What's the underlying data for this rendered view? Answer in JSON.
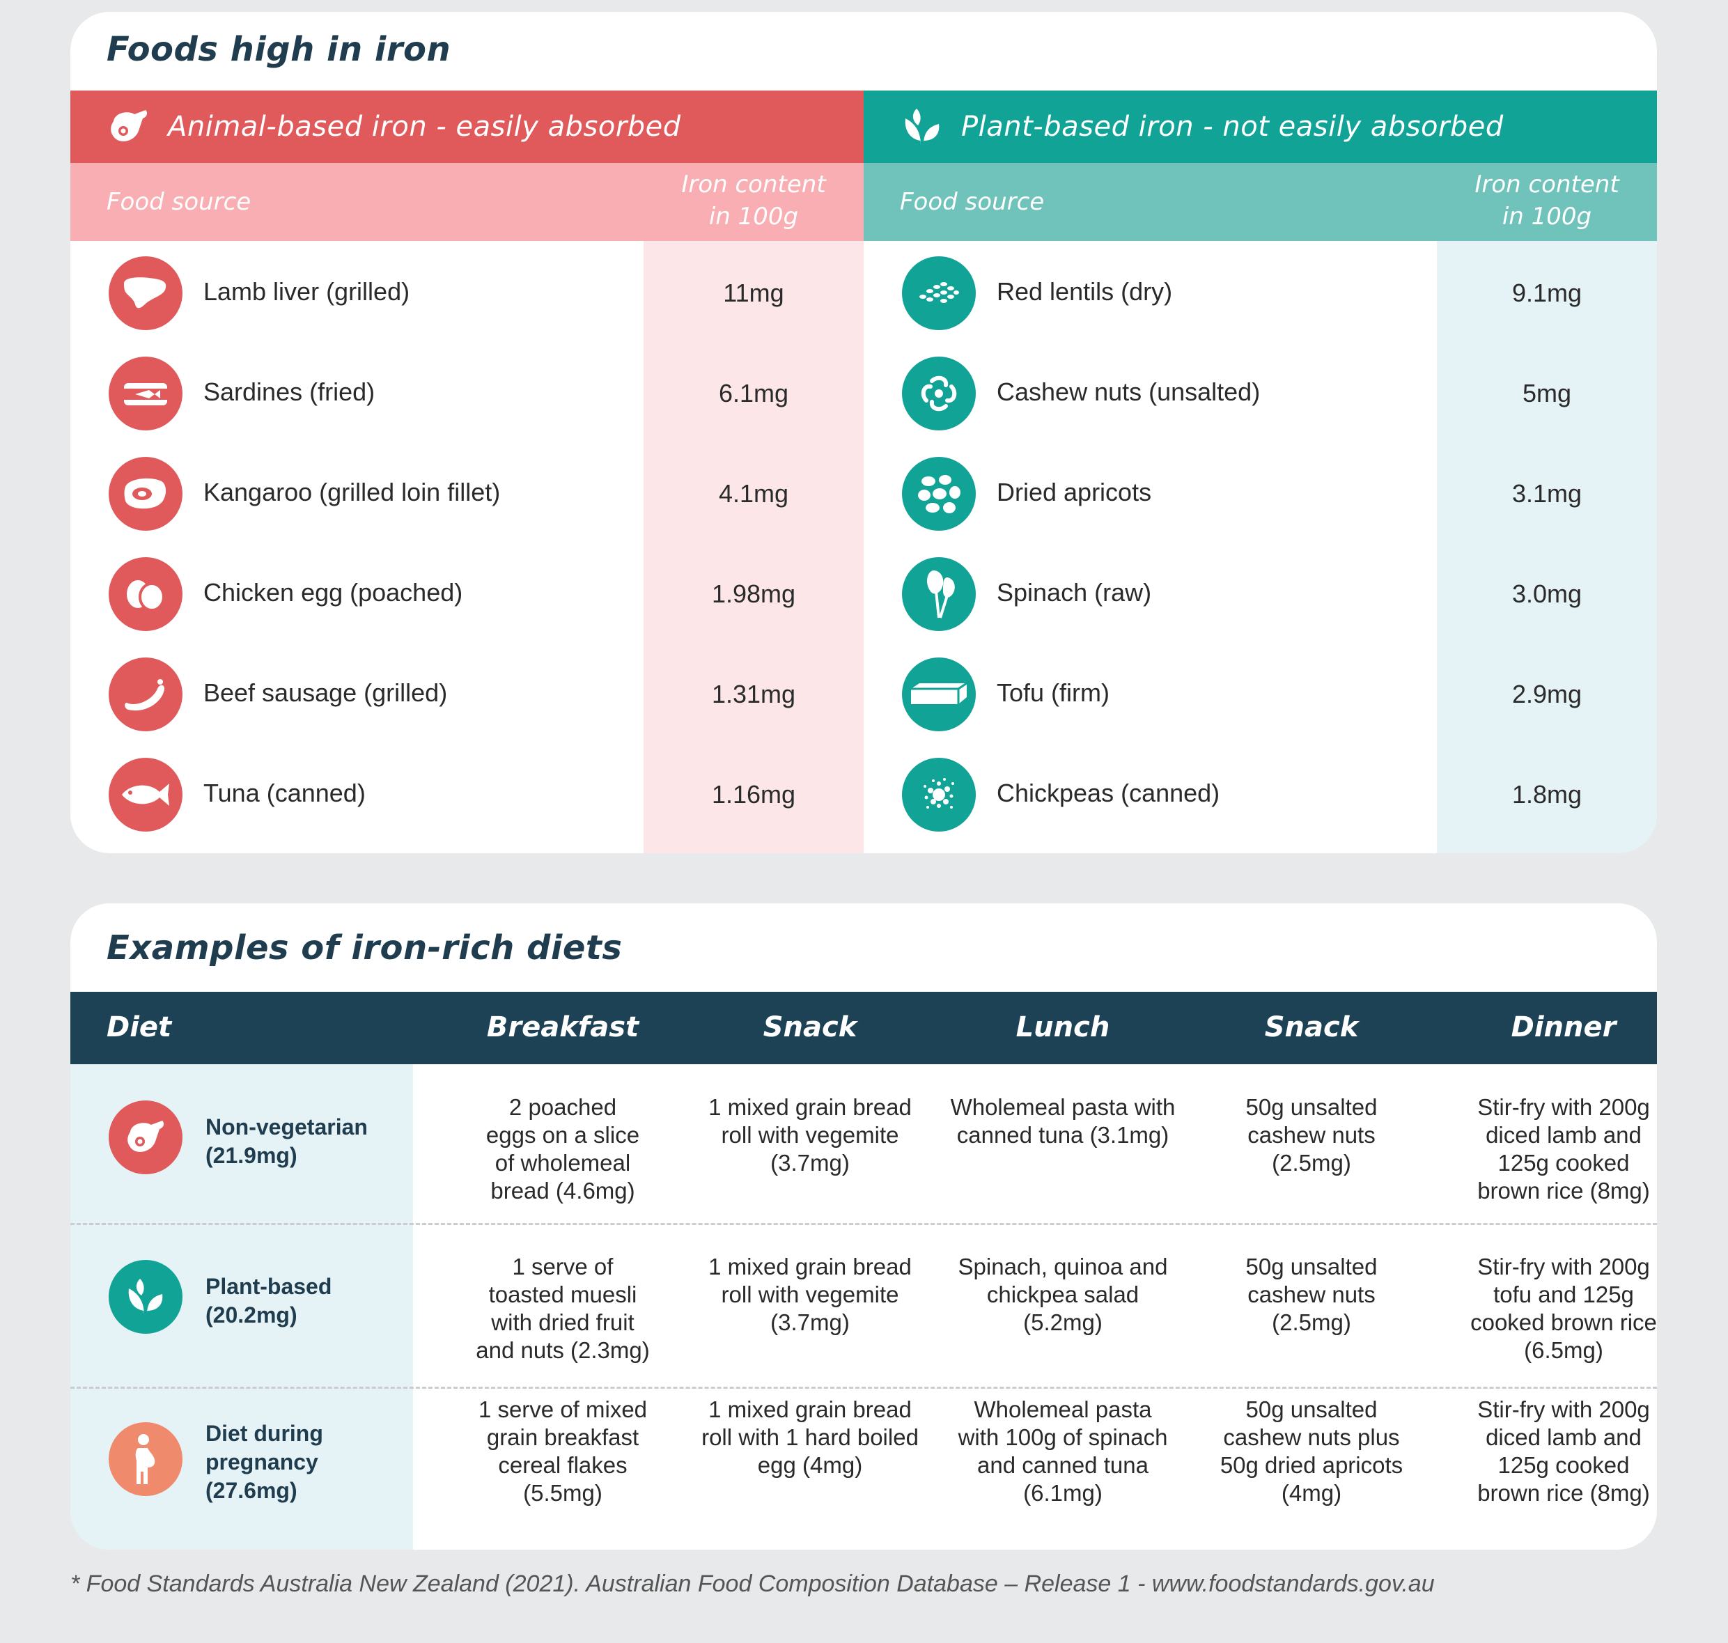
{
  "iron_table": {
    "title": "Foods high in iron",
    "animal": {
      "heading": "Animal-based iron - easily absorbed",
      "col_food": "Food source",
      "col_iron_line1": "Iron content",
      "col_iron_line2": "in 100g",
      "rows": [
        {
          "name": "Lamb liver (grilled)",
          "value": "11mg",
          "icon": "liver-icon"
        },
        {
          "name": "Sardines (fried)",
          "value": "6.1mg",
          "icon": "sardine-tin-icon"
        },
        {
          "name": "Kangaroo (grilled loin fillet)",
          "value": "4.1mg",
          "icon": "steak-icon"
        },
        {
          "name": "Chicken egg (poached)",
          "value": "1.98mg",
          "icon": "eggs-icon"
        },
        {
          "name": "Beef sausage (grilled)",
          "value": "1.31mg",
          "icon": "sausage-icon"
        },
        {
          "name": "Tuna (canned)",
          "value": "1.16mg",
          "icon": "fish-icon"
        }
      ]
    },
    "plant": {
      "heading": "Plant-based iron - not easily absorbed",
      "col_food": "Food source",
      "col_iron_line1": "Iron content",
      "col_iron_line2": "in 100g",
      "rows": [
        {
          "name": "Red lentils (dry)",
          "value": "9.1mg",
          "icon": "lentils-icon"
        },
        {
          "name": "Cashew nuts (unsalted)",
          "value": "5mg",
          "icon": "cashew-icon"
        },
        {
          "name": "Dried apricots",
          "value": "3.1mg",
          "icon": "apricots-icon"
        },
        {
          "name": "Spinach (raw)",
          "value": "3.0mg",
          "icon": "spinach-icon"
        },
        {
          "name": "Tofu (firm)",
          "value": "2.9mg",
          "icon": "tofu-icon"
        },
        {
          "name": "Chickpeas (canned)",
          "value": "1.8mg",
          "icon": "chickpeas-icon"
        }
      ]
    }
  },
  "diet_table": {
    "title": "Examples of iron-rich diets",
    "headers": [
      "Diet",
      "Breakfast",
      "Snack",
      "Lunch",
      "Snack",
      "Dinner"
    ],
    "rows": [
      {
        "diet_line1": "Non-vegetarian",
        "diet_line2": "(21.9mg)",
        "icon": "meat-icon",
        "cells": [
          [
            "2 poached",
            "eggs on a slice",
            "of wholemeal",
            "bread (4.6mg)"
          ],
          [
            "1 mixed grain bread",
            "roll with vegemite",
            "(3.7mg)"
          ],
          [
            "Wholemeal pasta with",
            "canned tuna (3.1mg)"
          ],
          [
            "50g unsalted",
            "cashew nuts",
            "(2.5mg)"
          ],
          [
            "Stir-fry with 200g",
            "diced lamb and",
            "125g cooked",
            "brown rice (8mg)"
          ]
        ]
      },
      {
        "diet_line1": "Plant-based",
        "diet_line2": "(20.2mg)",
        "icon": "leaf-icon",
        "cells": [
          [
            "1 serve of",
            "toasted muesli",
            "with dried fruit",
            "and nuts (2.3mg)"
          ],
          [
            "1 mixed grain bread",
            "roll with vegemite",
            "(3.7mg)"
          ],
          [
            "Spinach, quinoa and",
            "chickpea salad",
            "(5.2mg)"
          ],
          [
            "50g unsalted",
            "cashew nuts",
            "(2.5mg)"
          ],
          [
            "Stir-fry with 200g",
            "tofu and 125g",
            "cooked brown rice",
            "(6.5mg)"
          ]
        ]
      },
      {
        "diet_line1": "Diet during",
        "diet_line2": "pregnancy",
        "diet_line3": "(27.6mg)",
        "icon": "pregnant-person-icon",
        "cells": [
          [
            "1 serve of mixed",
            "grain breakfast",
            "cereal flakes",
            "(5.5mg)"
          ],
          [
            "1 mixed grain bread",
            "roll with 1 hard boiled",
            "egg (4mg)"
          ],
          [
            "Wholemeal pasta",
            "with 100g of spinach",
            "and canned tuna",
            "(6.1mg)"
          ],
          [
            "50g unsalted",
            "cashew nuts plus",
            "50g dried apricots",
            "(4mg)"
          ],
          [
            "Stir-fry with 200g",
            "diced lamb and",
            "125g cooked",
            "brown rice (8mg)"
          ]
        ]
      }
    ]
  },
  "footnote": "* Food Standards Australia New Zealand (2021). Australian Food Composition Database – Release 1 - www.foodstandards.gov.au",
  "colors": {
    "animal": "#e05a5c",
    "animal_light": "#f8aeb2",
    "plant": "#10a396",
    "plant_light": "#6fc3ba",
    "navy": "#1d4256",
    "pregnancy": "#f08a6c"
  }
}
